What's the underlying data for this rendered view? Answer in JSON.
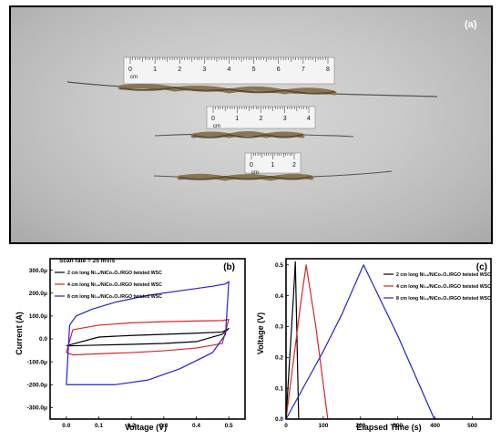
{
  "photo": {
    "panel_label": "(a)",
    "rulers": [
      {
        "ticks": [
          "0",
          "1",
          "2",
          "3",
          "4",
          "5",
          "6",
          "7",
          "8"
        ],
        "unit": "cm"
      },
      {
        "ticks": [
          "0",
          "1",
          "2",
          "3",
          "4"
        ],
        "unit": "cm"
      },
      {
        "ticks": [
          "0",
          "1",
          "2"
        ],
        "unit": "cm"
      }
    ]
  },
  "chart_data": [
    {
      "panel_label": "(b)",
      "type": "line",
      "subtitle": "Scan rate = 25 mV/s",
      "xlabel": "Voltage (V)",
      "ylabel": "Current (A)",
      "xlim": [
        -0.05,
        0.55
      ],
      "ylim": [
        -0.00035,
        0.00035
      ],
      "xticks": [
        "0.0",
        "0.1",
        "0.2",
        "0.3",
        "0.4",
        "0.5"
      ],
      "yticks": [
        "300.0μ",
        "200.0μ",
        "100.0μ",
        "0.0",
        "-100.0μ",
        "-200.0μ",
        "-300.0μ"
      ],
      "legend_position": "top-left",
      "series": [
        {
          "name": "2 cm long Ni₁₈/NiCo₂O₄/RGO twisted WSC",
          "color": "#000000",
          "x": [
            0.0,
            0.1,
            0.2,
            0.3,
            0.4,
            0.48,
            0.5,
            0.48,
            0.4,
            0.3,
            0.2,
            0.1,
            0.02,
            0.0
          ],
          "y": [
            -3e-05,
            8e-06,
            1.5e-05,
            2e-05,
            2.5e-05,
            3e-05,
            4.5e-05,
            2e-05,
            -1.2e-05,
            -2e-05,
            -2.4e-05,
            -2.7e-05,
            -3e-05,
            -3e-05
          ]
        },
        {
          "name": "4 cm long Ni₁₈/NiCo₂O₄/RGO twisted WSC",
          "color": "#d62728",
          "x": [
            0.0,
            0.02,
            0.1,
            0.2,
            0.3,
            0.4,
            0.48,
            0.5,
            0.48,
            0.4,
            0.3,
            0.2,
            0.1,
            0.02,
            0.0
          ],
          "y": [
            -6e-05,
            4e-05,
            6e-05,
            7e-05,
            7.5e-05,
            7.8e-05,
            8e-05,
            8.5e-05,
            -2e-05,
            -4e-05,
            -5.2e-05,
            -6e-05,
            -6.5e-05,
            -7e-05,
            -6e-05
          ]
        },
        {
          "name": "8 cm long Ni₁₈/NiCo₂O₄/RGO twisted WSC",
          "color": "#2222cc",
          "x": [
            0.0,
            0.01,
            0.03,
            0.08,
            0.15,
            0.25,
            0.35,
            0.45,
            0.49,
            0.5,
            0.49,
            0.45,
            0.35,
            0.25,
            0.15,
            0.06,
            0.01,
            0.0
          ],
          "y": [
            -0.0002,
            6e-05,
            0.0001,
            0.00013,
            0.00016,
            0.00019,
            0.00021,
            0.00023,
            0.00024,
            0.00025,
            2e-05,
            -6e-05,
            -0.00013,
            -0.00018,
            -0.0002,
            -0.0002,
            -0.0002,
            -0.0002
          ]
        }
      ]
    },
    {
      "panel_label": "(c)",
      "type": "line",
      "xlabel": "Elapsed Time (s)",
      "ylabel": "Voltage (V)",
      "xlim": [
        0,
        550
      ],
      "ylim": [
        0,
        0.52
      ],
      "xticks": [
        "0",
        "100",
        "200",
        "300",
        "400",
        "500"
      ],
      "yticks": [
        "0.0",
        "0.1",
        "0.2",
        "0.3",
        "0.4",
        "0.5"
      ],
      "legend_position": "top-right",
      "series": [
        {
          "name": "2 cm long  Ni₁₈/NiCo₂O₄/RGO twisted WSC",
          "color": "#000000",
          "x": [
            0,
            10,
            20,
            25,
            34
          ],
          "y": [
            0,
            0.2,
            0.4,
            0.51,
            0
          ]
        },
        {
          "name": "4 cm long  Ni₁₈/NiCo₂O₄/RGO twisted WSC",
          "color": "#d62728",
          "x": [
            0,
            20,
            40,
            54,
            80,
            112
          ],
          "y": [
            0,
            0.19,
            0.38,
            0.5,
            0.3,
            0
          ]
        },
        {
          "name": "8 cm long  Ni₁₈/NiCo₂O₄/RGO twisted WSC",
          "color": "#2222cc",
          "x": [
            0,
            50,
            100,
            150,
            208,
            300,
            398
          ],
          "y": [
            0,
            0.11,
            0.22,
            0.34,
            0.5,
            0.27,
            0
          ]
        }
      ]
    }
  ]
}
